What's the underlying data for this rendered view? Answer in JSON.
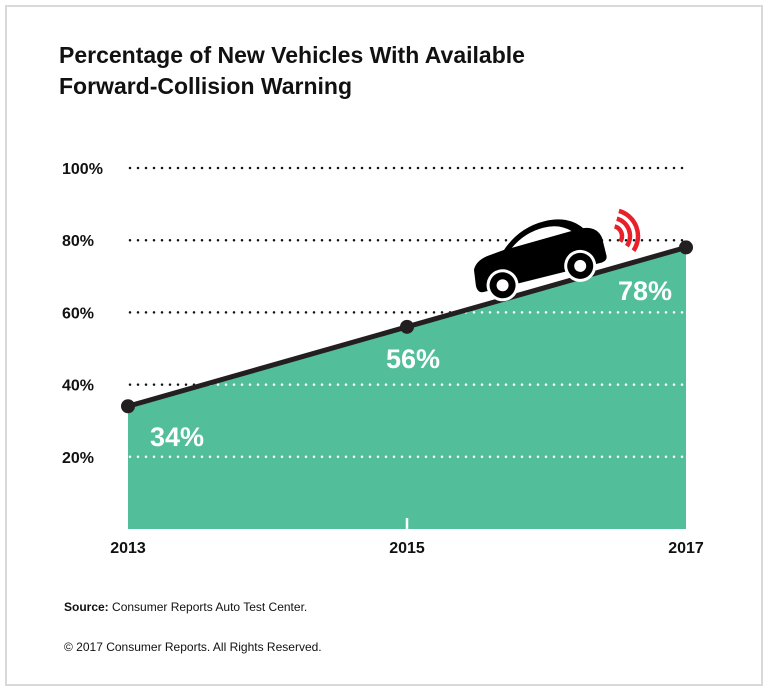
{
  "chart_data": {
    "type": "area",
    "title": "Percentage of New Vehicles With Available Forward-Collision Warning",
    "x": [
      "2013",
      "2015",
      "2017"
    ],
    "values": [
      34,
      56,
      78
    ],
    "data_labels": [
      "34%",
      "56%",
      "78%"
    ],
    "yticks": [
      "20%",
      "40%",
      "60%",
      "80%",
      "100%"
    ],
    "ylim": [
      0,
      100
    ],
    "grid": true,
    "colors": {
      "fill": "#52bf9a",
      "line": "#231f20",
      "signal": "#e8202a"
    }
  },
  "source_label": "Source:",
  "source_text": " Consumer Reports Auto Test Center.",
  "copyright": "© 2017 Consumer Reports. All Rights Reserved.",
  "icons": [
    "car-icon",
    "signal-waves-icon"
  ]
}
